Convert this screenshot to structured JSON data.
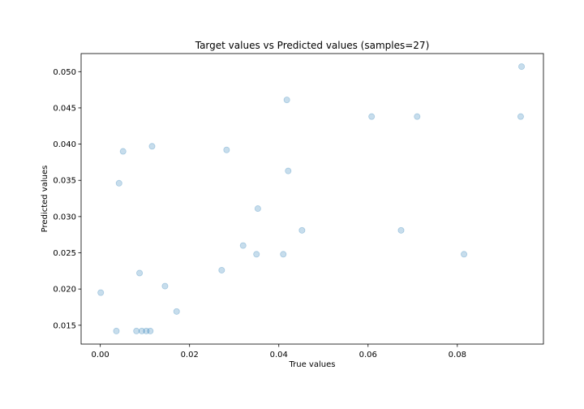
{
  "chart_data": {
    "type": "scatter",
    "title": "Target values vs Predicted values (samples=27)",
    "xlabel": "True values",
    "ylabel": "Predicted values",
    "xlim": [
      -0.0043,
      0.0993
    ],
    "ylim": [
      0.0124,
      0.0525
    ],
    "xticks": [
      0.0,
      0.02,
      0.04,
      0.06,
      0.08
    ],
    "xtick_labels": [
      "0.00",
      "0.02",
      "0.04",
      "0.06",
      "0.08"
    ],
    "yticks": [
      0.015,
      0.02,
      0.025,
      0.03,
      0.035,
      0.04,
      0.045,
      0.05
    ],
    "ytick_labels": [
      "0.015",
      "0.020",
      "0.025",
      "0.030",
      "0.035",
      "0.040",
      "0.045",
      "0.050"
    ],
    "grid": false,
    "point_color": "#1f77b4",
    "point_opacity": 0.25,
    "series": [
      {
        "points": [
          {
            "x": 0.0001,
            "y": 0.0195
          },
          {
            "x": 0.0036,
            "y": 0.0142
          },
          {
            "x": 0.0042,
            "y": 0.0346
          },
          {
            "x": 0.0051,
            "y": 0.039
          },
          {
            "x": 0.0081,
            "y": 0.0142
          },
          {
            "x": 0.0088,
            "y": 0.0222
          },
          {
            "x": 0.0093,
            "y": 0.0142
          },
          {
            "x": 0.0103,
            "y": 0.0142
          },
          {
            "x": 0.0112,
            "y": 0.0142
          },
          {
            "x": 0.0116,
            "y": 0.0397
          },
          {
            "x": 0.0145,
            "y": 0.0204
          },
          {
            "x": 0.0171,
            "y": 0.0169
          },
          {
            "x": 0.0272,
            "y": 0.0226
          },
          {
            "x": 0.0283,
            "y": 0.0392
          },
          {
            "x": 0.032,
            "y": 0.026
          },
          {
            "x": 0.035,
            "y": 0.0248
          },
          {
            "x": 0.0353,
            "y": 0.0311
          },
          {
            "x": 0.041,
            "y": 0.0248
          },
          {
            "x": 0.0418,
            "y": 0.0461
          },
          {
            "x": 0.0421,
            "y": 0.0363
          },
          {
            "x": 0.0452,
            "y": 0.0281
          },
          {
            "x": 0.0608,
            "y": 0.0438
          },
          {
            "x": 0.0674,
            "y": 0.0281
          },
          {
            "x": 0.071,
            "y": 0.0438
          },
          {
            "x": 0.0815,
            "y": 0.0248
          },
          {
            "x": 0.0942,
            "y": 0.0438
          },
          {
            "x": 0.0944,
            "y": 0.0507
          }
        ]
      }
    ]
  }
}
